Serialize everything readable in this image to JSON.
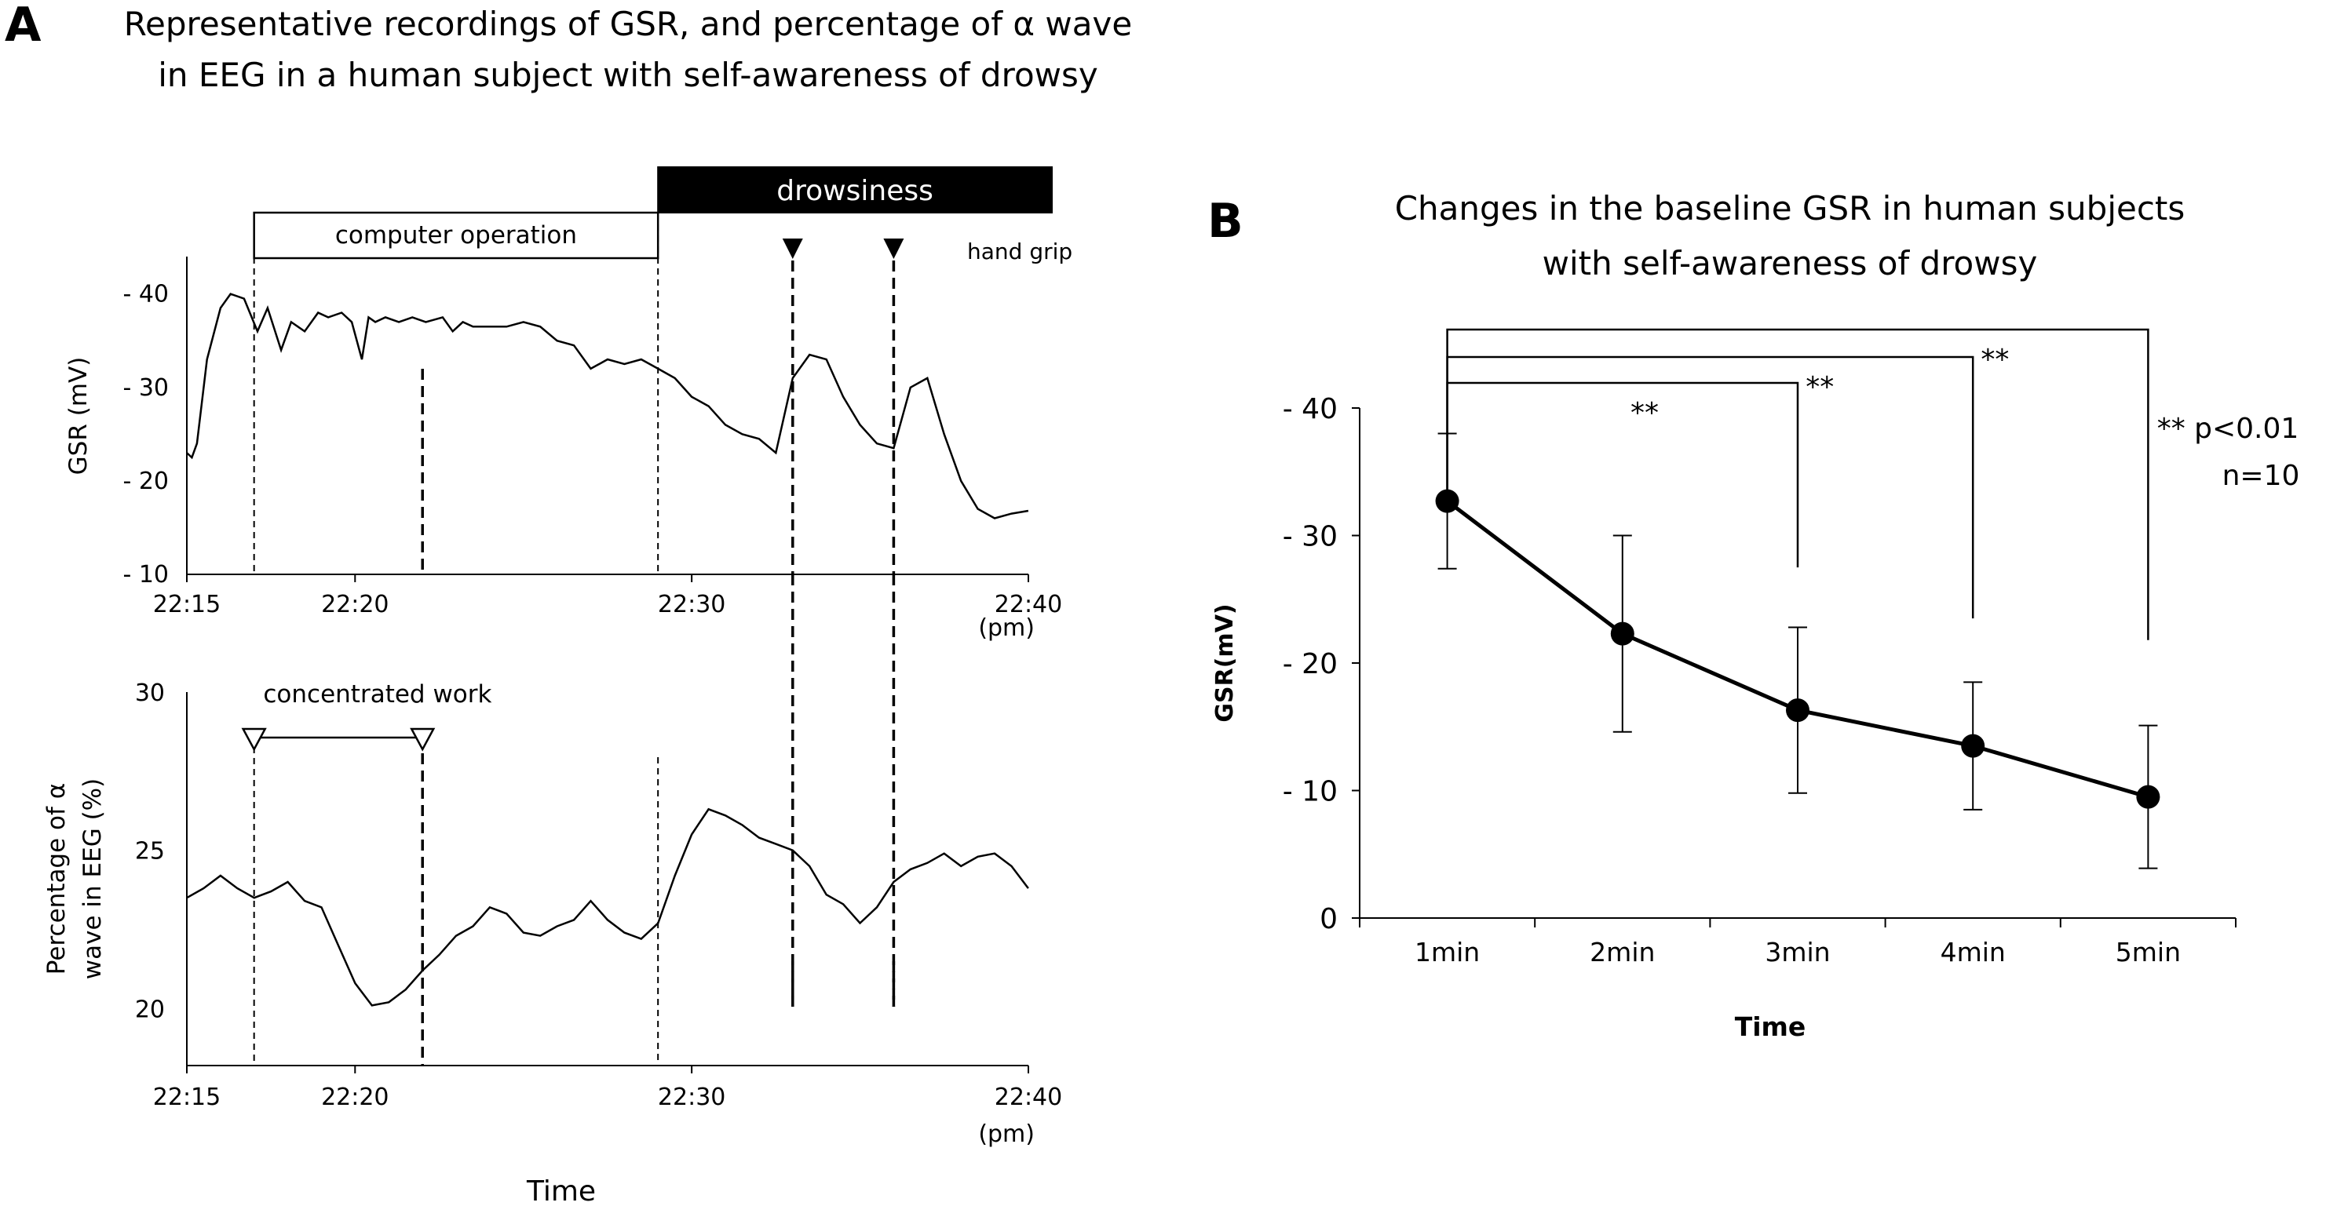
{
  "figure": {
    "panel_a_letter": "A",
    "panel_b_letter": "B"
  },
  "chart_data": [
    {
      "type": "line",
      "panel": "A-top",
      "title": "Representative recordings of GSR, and percentage of α wave in EEG in a human subject with self-awareness of drowsy",
      "title_lines": [
        "Representative recordings of GSR, and percentage of α wave",
        "in EEG in a human subject with self-awareness of drowsy"
      ],
      "ylabel": "GSR (mV)",
      "ylim": [
        10,
        44
      ],
      "yticks": [
        10,
        20,
        30,
        40
      ],
      "ytick_labels": [
        "- 10",
        "- 20",
        "- 30",
        "- 40"
      ],
      "xlim": [
        22.25,
        22.6667
      ],
      "xtick_labels": [
        "22:15",
        "22:20",
        "22:30",
        "22:40"
      ],
      "x_unit_label": "(pm)",
      "x": [
        0,
        0.15,
        0.3,
        0.6,
        1,
        1.3,
        1.7,
        2.1,
        2.4,
        2.8,
        3.1,
        3.5,
        3.9,
        4.2,
        4.6,
        4.9,
        5.2,
        5.4,
        5.6,
        5.9,
        6.3,
        6.7,
        7.1,
        7.6,
        7.9,
        8.2,
        8.5,
        9,
        9.5,
        10,
        10.5,
        11,
        11.5,
        12,
        12.5,
        13,
        13.5,
        14,
        14.5,
        15,
        15.5,
        16,
        16.5,
        17,
        17.5,
        18,
        18.5,
        19,
        19.5,
        20,
        20.5,
        21,
        21.5,
        22,
        22.5,
        23,
        23.5,
        24,
        24.5,
        25
      ],
      "values": [
        23,
        22.5,
        24,
        33,
        38.5,
        40,
        39.5,
        36,
        38.5,
        34,
        37,
        36,
        38,
        37.5,
        38,
        37,
        33,
        37.5,
        37,
        37.5,
        37,
        37.5,
        37,
        37.5,
        36,
        37,
        36.5,
        36.5,
        36.5,
        37,
        36.5,
        35,
        34.5,
        32,
        33,
        32.5,
        33,
        32,
        31,
        29,
        28,
        26,
        25,
        24.5,
        23,
        31,
        33.5,
        33,
        29,
        26,
        24,
        23.5,
        30,
        31,
        25,
        20,
        17,
        16,
        16.5,
        16.8
      ],
      "events": [
        {
          "label": "computer operation",
          "start": 22.2833,
          "end": 22.4833
        },
        {
          "label": "drowsiness",
          "start": 22.4833,
          "end": 22.6667
        }
      ],
      "event_markers": {
        "label": "hand grip",
        "times": [
          22.55,
          22.6
        ]
      },
      "dashed_lines": [
        22.2833,
        22.3667,
        22.4833,
        22.55,
        22.6
      ]
    },
    {
      "type": "line",
      "panel": "A-bottom",
      "ylabel": "Percentage of α wave in EEG (%)",
      "ylabel_lines": [
        "Percentage of α",
        "wave in EEG (%)"
      ],
      "ylim": [
        18.2,
        30
      ],
      "yticks": [
        20,
        25,
        30
      ],
      "ytick_labels": [
        "20",
        "25",
        "30"
      ],
      "xlim": [
        22.25,
        22.6667
      ],
      "xtick_labels": [
        "22:15",
        "22:20",
        "22:30",
        "22:40"
      ],
      "x_unit_label": "(pm)",
      "xlabel": "Time",
      "x": [
        0,
        0.5,
        1,
        1.5,
        2,
        2.5,
        3,
        3.5,
        4,
        4.5,
        5,
        5.5,
        6,
        6.5,
        7,
        7.5,
        8,
        8.5,
        9,
        9.5,
        10,
        10.5,
        11,
        11.5,
        12,
        12.5,
        13,
        13.5,
        14,
        14.5,
        15,
        15.5,
        16,
        16.5,
        17,
        17.5,
        18,
        18.5,
        19,
        19.5,
        20,
        20.5,
        21,
        21.5,
        22,
        22.5,
        23,
        23.5,
        24,
        24.5,
        25
      ],
      "values": [
        23.5,
        23.8,
        24.2,
        23.8,
        23.5,
        23.7,
        24,
        23.4,
        23.2,
        22,
        20.8,
        20.1,
        20.2,
        20.6,
        21.2,
        21.7,
        22.3,
        22.6,
        23.2,
        23,
        22.4,
        22.3,
        22.6,
        22.8,
        23.4,
        22.8,
        22.4,
        22.2,
        22.7,
        24.2,
        25.5,
        26.3,
        26.1,
        25.8,
        25.4,
        25.2,
        25,
        24.5,
        23.6,
        23.3,
        22.7,
        23.2,
        24,
        24.4,
        24.6,
        24.9,
        24.5,
        24.8,
        24.9,
        24.5,
        23.8
      ],
      "annotation": {
        "label": "concentrated work",
        "start": 22.2833,
        "end": 22.3667
      },
      "dashed_lines": [
        22.2833,
        22.3667,
        22.4833,
        22.55,
        22.6
      ]
    },
    {
      "type": "line",
      "panel": "B",
      "title": "Changes in the baseline GSR in human subjects with self-awareness of drowsy",
      "title_lines": [
        "Changes in the baseline GSR in human subjects",
        "with self-awareness of drowsy"
      ],
      "xlabel": "Time",
      "ylabel": "GSR(mV)",
      "ylim": [
        0,
        40
      ],
      "yticks": [
        0,
        10,
        20,
        30,
        40
      ],
      "ytick_labels": [
        "0",
        "- 10",
        "- 20",
        "- 30",
        "- 40"
      ],
      "categories": [
        "1min",
        "2min",
        "3min",
        "4min",
        "5min"
      ],
      "values": [
        32.7,
        22.3,
        16.3,
        13.5,
        9.5
      ],
      "errors": [
        5.3,
        7.7,
        6.5,
        5.0,
        5.6
      ],
      "significance": [
        {
          "from": "1min",
          "to": "3min",
          "label": "**"
        },
        {
          "from": "1min",
          "to": "4min",
          "label": "**"
        },
        {
          "from": "1min",
          "to": "5min",
          "label": "**"
        }
      ],
      "legend": [
        "** p<0.01",
        "n=10"
      ]
    }
  ]
}
